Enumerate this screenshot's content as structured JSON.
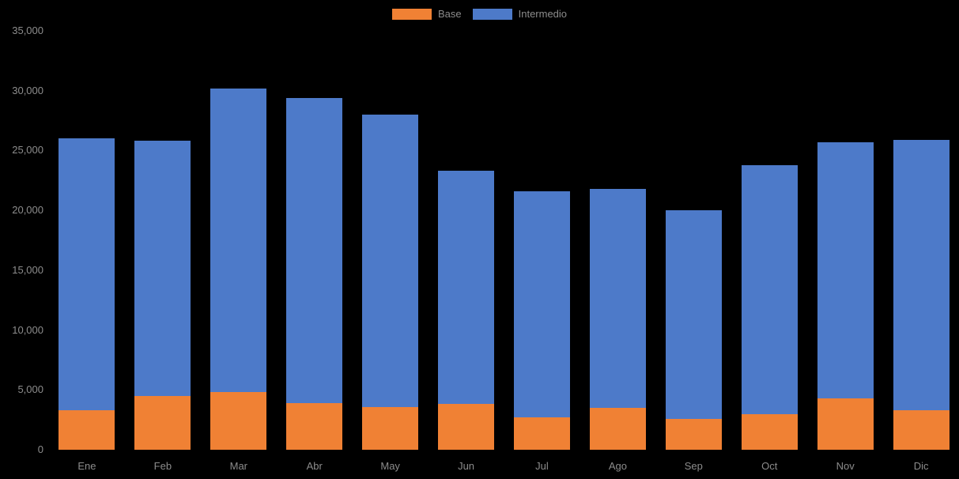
{
  "chart_data": {
    "type": "bar",
    "stacked": true,
    "title": "",
    "xlabel": "",
    "ylabel": "",
    "categories": [
      "Ene",
      "Feb",
      "Mar",
      "Abr",
      "May",
      "Jun",
      "Jul",
      "Ago",
      "Sep",
      "Oct",
      "Nov",
      "Dic"
    ],
    "series": [
      {
        "name": "Base",
        "color": "#F08134",
        "values": [
          3300,
          4500,
          4800,
          3900,
          3600,
          3800,
          2700,
          3500,
          2600,
          3000,
          4300,
          3300
        ]
      },
      {
        "name": "Intermedio",
        "color": "#4D7AC9",
        "values": [
          22700,
          21300,
          25400,
          25500,
          24400,
          19500,
          18900,
          18300,
          17400,
          20800,
          21400,
          22600
        ]
      }
    ],
    "ylim": [
      0,
      35000
    ],
    "ytick_step": 5000,
    "ytick_labels": [
      "0",
      "5,000",
      "10,000",
      "15,000",
      "20,000",
      "25,000",
      "30,000",
      "35,000"
    ],
    "legend_position": "top-center",
    "grid": false,
    "colors": {
      "background": "#000000",
      "text": "#8C8C8C"
    }
  }
}
